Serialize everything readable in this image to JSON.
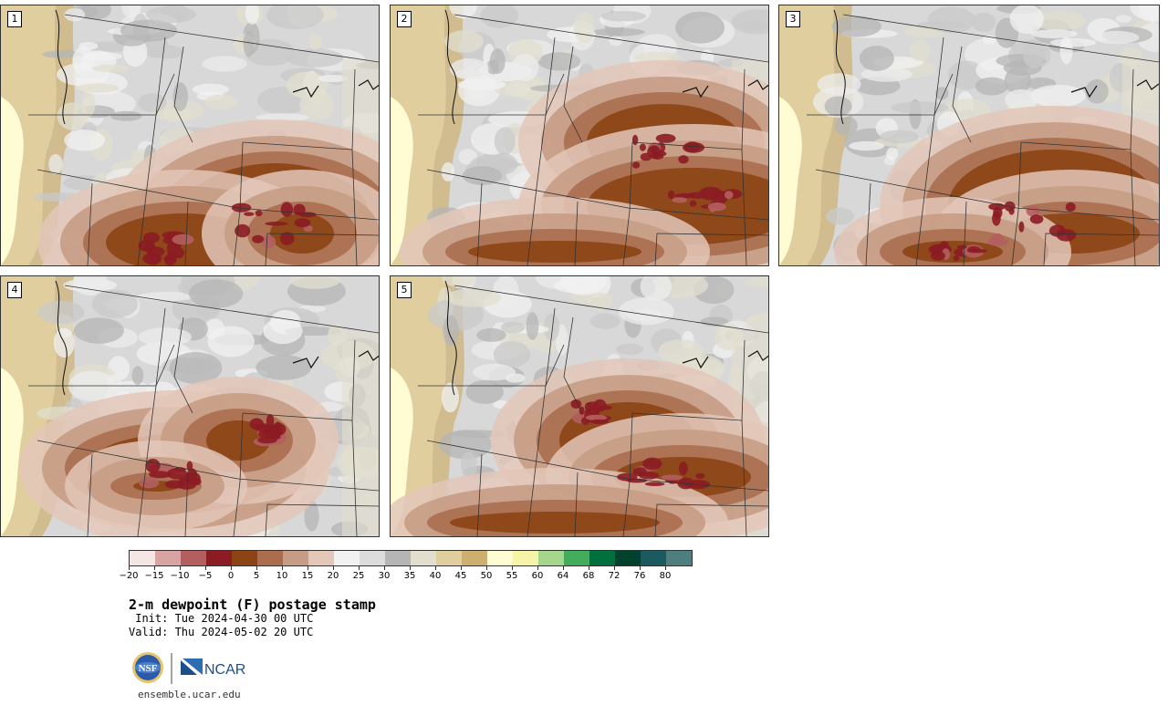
{
  "panels": [
    {
      "number": "1"
    },
    {
      "number": "2"
    },
    {
      "number": "3"
    },
    {
      "number": "4"
    },
    {
      "number": "5"
    }
  ],
  "colorbar": {
    "colors": [
      "#f3e6e4",
      "#d7a3a3",
      "#b35f5f",
      "#8b1c24",
      "#8b4413",
      "#aa6e4f",
      "#c69c84",
      "#e3c7b8",
      "#f1f1f1",
      "#dcdcdc",
      "#b5b5b5",
      "#e2dfcf",
      "#e0ce9f",
      "#cdb070",
      "#fffbd3",
      "#f7f4a8",
      "#a5d68d",
      "#43ad5c",
      "#00703c",
      "#01412d",
      "#1b5a5e",
      "#4e7e7e"
    ],
    "tick_labels": [
      "−20",
      "−15",
      "−10",
      "−5",
      "0",
      "5",
      "10",
      "15",
      "20",
      "25",
      "30",
      "35",
      "40",
      "45",
      "50",
      "55",
      "60",
      "64",
      "68",
      "72",
      "76",
      "80"
    ]
  },
  "legend": {
    "title": "2-m dewpoint (F) postage stamp",
    "init": " Init: Tue 2024-04-30 00 UTC",
    "valid": "Valid: Thu 2024-05-02 20 UTC"
  },
  "logos": {
    "nsf": "NSF",
    "ncar": "NCAR"
  },
  "site": "ensemble.ucar.edu"
}
